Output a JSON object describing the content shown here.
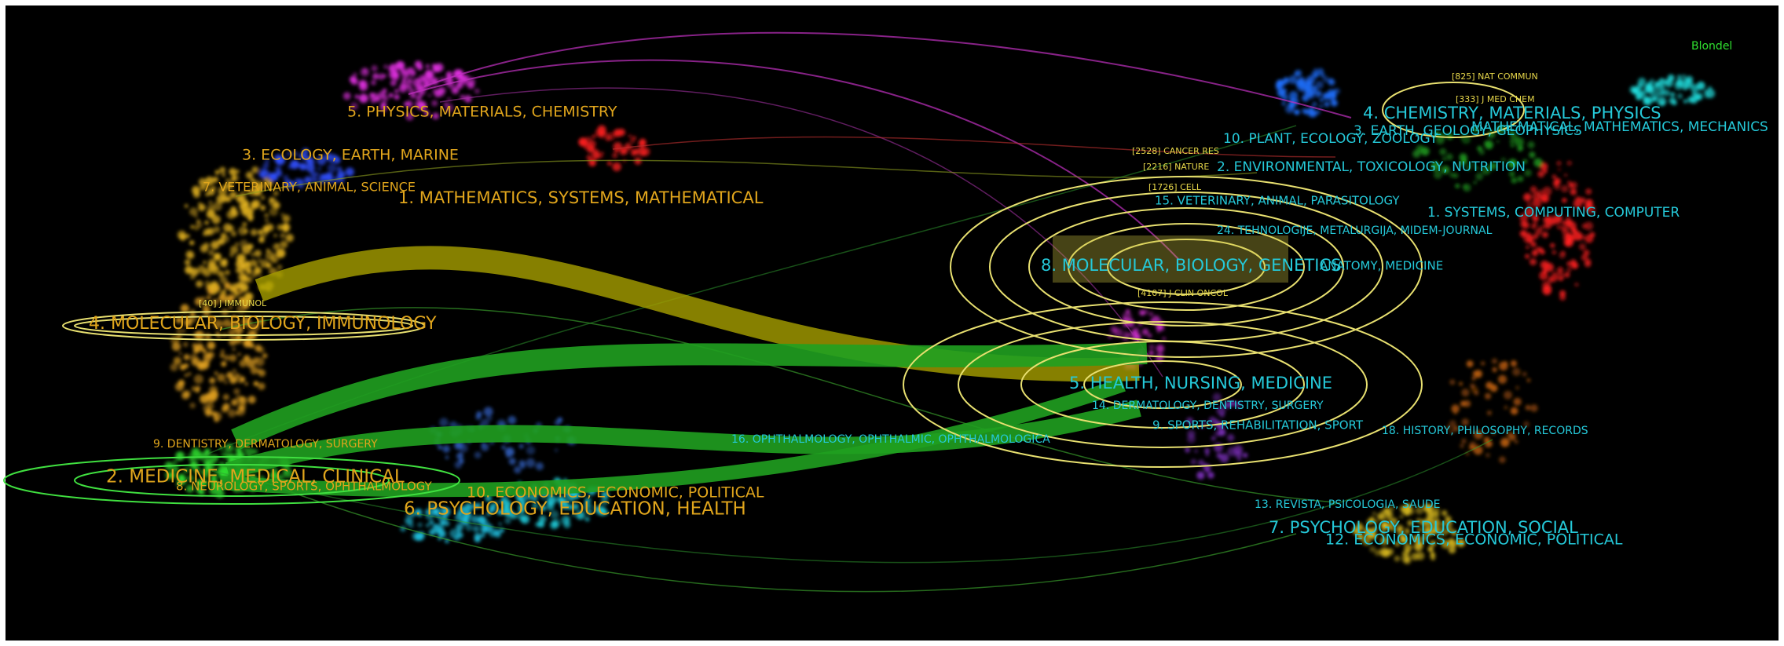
{
  "legend": "Blondel",
  "left_labels": [
    "5. PHYSICS, MATERIALS, CHEMISTRY",
    "3. ECOLOGY, EARTH, MARINE",
    "7. VETERINARY, ANIMAL, SCIENCE",
    "1. MATHEMATICS, SYSTEMS, MATHEMATICAL",
    "4. MOLECULAR, BIOLOGY, IMMUNOLOGY",
    "9. DENTISTRY, DERMATOLOGY, SURGERY",
    "2. MEDICINE, MEDICAL, CLINICAL",
    "8. NEUROLOGY, SPORTS, OPHTHALMOLOGY",
    "10. ECONOMICS, ECONOMIC, POLITICAL",
    "6. PSYCHOLOGY, EDUCATION, HEALTH"
  ],
  "right_labels": [
    "4. CHEMISTRY, MATERIALS, PHYSICS",
    "3. EARTH, GEOLOGY, GEOPHYSICS",
    "MATHEMATICAL, MATHEMATICS, MECHANICS",
    "10. PLANT, ECOLOGY, ZOOLOGY",
    "2. ENVIRONMENTAL, TOXICOLOGY, NUTRITION",
    "15. VETERINARY, ANIMAL, PARASITOLOGY",
    "1. SYSTEMS, COMPUTING, COMPUTER",
    "24. TEHNOLOGIJE, METALURGIJA, MIDEM-JOURNAL",
    "8. MOLECULAR, BIOLOGY, GENETICS",
    "ANATOMY, MEDICINE",
    "5. HEALTH, NURSING, MEDICINE",
    "14. DERMATOLOGY, DENTISTRY, SURGERY",
    "9. SPORTS, REHABILITATION, SPORT",
    "18. HISTORY, PHILOSOPHY, RECORDS",
    "16. OPHTHALMOLOGY, OPHTHALMIC, OPHTHALMOLOGICA",
    "13. REVISTA, PSICOLOGIA, SAUDE",
    "7. PSYCHOLOGY, EDUCATION, SOCIAL",
    "12. ECONOMICS, ECONOMIC, POLITICAL"
  ],
  "journal_labels": [
    "[825] NAT COMMUN",
    "[333] J MED CHEM",
    "[2528] CANCER RES",
    "[2216] NATURE",
    "[1726] CELL",
    "[4107] J CLIN ONCOL",
    "[40] J IMMUNOL"
  ]
}
